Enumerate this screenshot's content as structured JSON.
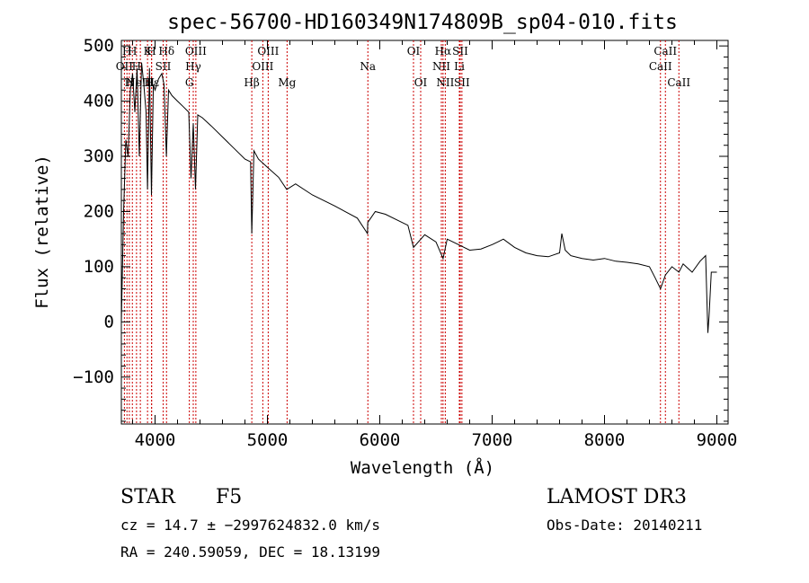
{
  "chart_data": {
    "type": "line",
    "title": "spec-56700-HD160349N174809B_sp04-010.fits",
    "xlabel": "Wavelength (Å)",
    "ylabel": "Flux (relative)",
    "xlim": [
      3700,
      9100
    ],
    "ylim": [
      -185,
      510
    ],
    "xticks": [
      4000,
      5000,
      6000,
      7000,
      8000,
      9000
    ],
    "xtick_labels": [
      "4000",
      "5000",
      "6000",
      "7000",
      "8000",
      "9000"
    ],
    "yticks": [
      -100,
      0,
      100,
      200,
      300,
      400,
      500
    ],
    "ytick_labels": [
      "−100",
      "0",
      "100",
      "200",
      "300",
      "400",
      "500"
    ],
    "series": [
      {
        "name": "spectrum",
        "x": [
          3700,
          3720,
          3740,
          3760,
          3780,
          3800,
          3820,
          3840,
          3860,
          3880,
          3900,
          3920,
          3933,
          3950,
          3968,
          3985,
          4000,
          4030,
          4060,
          4080,
          4101,
          4120,
          4150,
          4200,
          4250,
          4300,
          4320,
          4340,
          4360,
          4380,
          4420,
          4500,
          4600,
          4700,
          4800,
          4850,
          4861,
          4880,
          4920,
          5000,
          5100,
          5172,
          5250,
          5400,
          5600,
          5800,
          5890,
          5893,
          5960,
          6050,
          6150,
          6250,
          6300,
          6400,
          6500,
          6563,
          6600,
          6700,
          6800,
          6900,
          7000,
          7050,
          7100,
          7200,
          7300,
          7400,
          7500,
          7600,
          7620,
          7650,
          7700,
          7800,
          7900,
          8000,
          8100,
          8200,
          8300,
          8400,
          8450,
          8498,
          8542,
          8600,
          8662,
          8700,
          8780,
          8850,
          8900,
          8920,
          8930,
          8950,
          9000
        ],
        "y": [
          0,
          200,
          330,
          300,
          420,
          450,
          380,
          460,
          300,
          470,
          430,
          380,
          240,
          460,
          230,
          430,
          420,
          440,
          450,
          430,
          300,
          420,
          410,
          400,
          390,
          380,
          260,
          360,
          240,
          375,
          370,
          355,
          335,
          315,
          295,
          290,
          160,
          310,
          295,
          280,
          262,
          240,
          250,
          230,
          210,
          188,
          160,
          180,
          200,
          195,
          185,
          175,
          135,
          158,
          145,
          115,
          150,
          140,
          130,
          132,
          140,
          145,
          150,
          135,
          125,
          120,
          118,
          125,
          160,
          130,
          120,
          115,
          112,
          115,
          110,
          108,
          105,
          100,
          80,
          60,
          85,
          100,
          90,
          105,
          90,
          110,
          120,
          -20,
          10,
          90,
          90
        ]
      }
    ],
    "lines": [
      {
        "label": "OII",
        "wavelength": 3727,
        "row": 2
      },
      {
        "label": "H",
        "wavelength": 3750,
        "row": 1
      },
      {
        "label": "H",
        "wavelength": 3771,
        "row": 3
      },
      {
        "label": "H",
        "wavelength": 3798,
        "row": 1
      },
      {
        "label": "H",
        "wavelength": 3835,
        "row": 2
      },
      {
        "label": "NeIII",
        "wavelength": 3869,
        "row": 3
      },
      {
        "label": "K",
        "wavelength": 3933,
        "row": 1
      },
      {
        "label": "H",
        "wavelength": 3968,
        "row": 1
      },
      {
        "label": "Hε",
        "wavelength": 3970,
        "row": 3
      },
      {
        "label": "SII",
        "wavelength": 4072,
        "row": 2
      },
      {
        "label": "Hδ",
        "wavelength": 4102,
        "row": 1
      },
      {
        "label": "OIII",
        "wavelength": 4363,
        "row": 1
      },
      {
        "label": "Hγ",
        "wavelength": 4340,
        "row": 2
      },
      {
        "label": "G",
        "wavelength": 4305,
        "row": 3
      },
      {
        "label": "Hβ",
        "wavelength": 4861,
        "row": 3
      },
      {
        "label": "OIII",
        "wavelength": 4959,
        "row": 2
      },
      {
        "label": "OIII",
        "wavelength": 5007,
        "row": 1
      },
      {
        "label": "Mg",
        "wavelength": 5175,
        "row": 3
      },
      {
        "label": "Na",
        "wavelength": 5894,
        "row": 2
      },
      {
        "label": "OI",
        "wavelength": 6300,
        "row": 1
      },
      {
        "label": "OI",
        "wavelength": 6364,
        "row": 3
      },
      {
        "label": "Hα",
        "wavelength": 6563,
        "row": 1
      },
      {
        "label": "NII",
        "wavelength": 6548,
        "row": 2
      },
      {
        "label": "NII",
        "wavelength": 6583,
        "row": 3
      },
      {
        "label": "SII",
        "wavelength": 6716,
        "row": 1
      },
      {
        "label": "Li",
        "wavelength": 6708,
        "row": 2
      },
      {
        "label": "SII",
        "wavelength": 6731,
        "row": 3
      },
      {
        "label": "CaII",
        "wavelength": 8498,
        "row": 2
      },
      {
        "label": "CaII",
        "wavelength": 8542,
        "row": 1
      },
      {
        "label": "CaII",
        "wavelength": 8662,
        "row": 3
      }
    ],
    "annotations": {
      "object_class": "STAR",
      "subclass": "F5",
      "survey": "LAMOST DR3",
      "redshift_line": "cz = 14.7 ± −2997624832.0 km/s",
      "obs_date": "Obs-Date: 20140211",
      "coords": "RA = 240.59059, DEC =  18.13199"
    }
  },
  "colors": {
    "line": "#000000",
    "marker_lines": "#cc0000",
    "background": "#ffffff"
  }
}
